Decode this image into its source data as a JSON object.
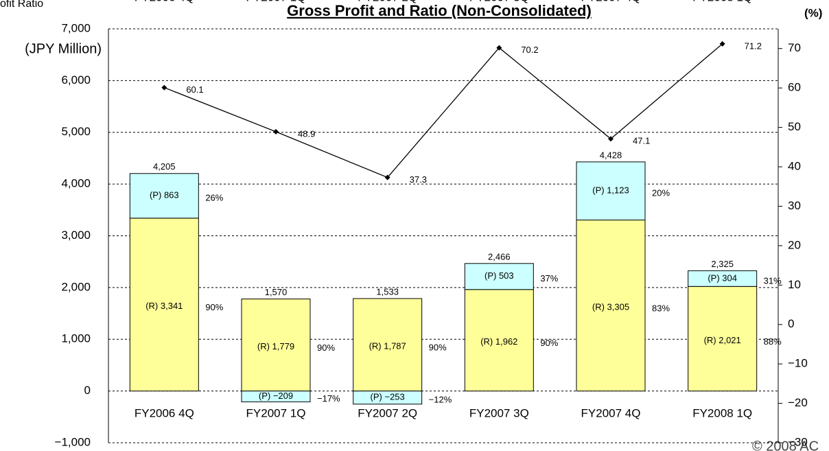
{
  "chart_data": {
    "type": "bar-line",
    "title": "Gross Profit and Ratio (Non-Consolidated)",
    "legend_fragment": "ofit Ratio",
    "copyright": "© 2008 AC",
    "y_label": "(JPY Million)",
    "y2_label": "(%)",
    "categories": [
      "FY2006 4Q",
      "FY2007 1Q",
      "FY2007 2Q",
      "FY2007 3Q",
      "FY2007 4Q",
      "FY2008 1Q"
    ],
    "series": [
      {
        "name": "R",
        "color": "#ffff99",
        "values": [
          3341,
          1779,
          1787,
          1962,
          3305,
          2021
        ],
        "value_labels": [
          "(R) 3,341",
          "(R) 1,779",
          "(R) 1,787",
          "(R) 1,962",
          "(R) 3,305",
          "(R) 2,021"
        ],
        "shares": [
          90,
          90,
          90,
          90,
          83,
          88
        ],
        "share_labels": [
          "90%",
          "90%",
          "90%",
          "90%",
          "83%",
          "88%"
        ]
      },
      {
        "name": "P",
        "color": "#ccffff",
        "values": [
          863,
          -209,
          -253,
          503,
          1123,
          304
        ],
        "value_labels": [
          "(P) 863",
          "(P) −209",
          "(P) −253",
          "(P) 503",
          "(P) 1,123",
          "(P) 304"
        ],
        "shares": [
          26,
          -17,
          -12,
          37,
          20,
          31
        ],
        "share_labels": [
          "26%",
          "−17%",
          "−12%",
          "37%",
          "20%",
          "31%"
        ]
      },
      {
        "name": "Gross Profit Ratio",
        "axis": "y2",
        "color": "#000000",
        "values": [
          60.1,
          48.9,
          37.3,
          70.2,
          47.1,
          71.2
        ]
      }
    ],
    "totals": [
      4205,
      1570,
      1533,
      2466,
      4428,
      2325
    ],
    "total_labels": [
      "4,205",
      "1,570",
      "1,533",
      "2,466",
      "4,428",
      "2,325"
    ],
    "ylim": [
      -1000,
      7000
    ],
    "yticks": [
      {
        "value": -1000,
        "label": "−1,000"
      },
      0,
      {
        "value": 1000,
        "label": "1,000"
      },
      {
        "value": 2000,
        "label": "2,000"
      },
      {
        "value": 3000,
        "label": "3,000"
      },
      {
        "value": 4000,
        "label": "4,000"
      },
      {
        "value": 5000,
        "label": "5,000"
      },
      {
        "value": 6000,
        "label": "6,000"
      },
      {
        "value": 7000,
        "label": "7,000"
      }
    ],
    "y2lim": [
      -30,
      75
    ],
    "y2ticks": [
      {
        "value": -30,
        "label": "−30"
      },
      {
        "value": -20,
        "label": "−20"
      },
      {
        "value": -10,
        "label": "−10"
      },
      0,
      10,
      20,
      30,
      40,
      50,
      60,
      70
    ],
    "grid": true
  }
}
